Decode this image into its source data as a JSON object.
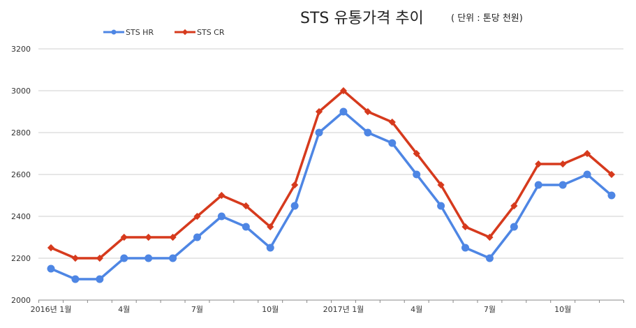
{
  "chart_data": {
    "type": "line",
    "title": "STS 유통가격 추이",
    "subtitle": "( 단위 : 톤당 천원)",
    "xlabel": "",
    "ylabel": "",
    "ylim": [
      2000,
      3200
    ],
    "y_ticks": [
      2000,
      2200,
      2400,
      2600,
      2800,
      3000,
      3200
    ],
    "x_tick_labels": [
      "2016년 1월",
      "4월",
      "7월",
      "10월",
      "2017년 1월",
      "4월",
      "7월",
      "10월"
    ],
    "x_tick_indices": [
      0,
      3,
      6,
      9,
      12,
      15,
      18,
      21
    ],
    "categories": [
      "2016-01",
      "2016-02",
      "2016-03",
      "2016-04",
      "2016-05",
      "2016-06",
      "2016-07",
      "2016-08",
      "2016-09",
      "2016-10",
      "2016-11",
      "2016-12",
      "2017-01",
      "2017-02",
      "2017-03",
      "2017-04",
      "2017-05",
      "2017-06",
      "2017-07",
      "2017-08",
      "2017-09",
      "2017-10",
      "2017-11",
      "2017-12"
    ],
    "grid": true,
    "legend_position": "top-left",
    "series": [
      {
        "name": "STS HR",
        "color": "#4e86e4",
        "marker": "circle",
        "values": [
          2150,
          2100,
          2100,
          2200,
          2200,
          2200,
          2300,
          2400,
          2350,
          2250,
          2450,
          2800,
          2900,
          2800,
          2750,
          2600,
          2450,
          2250,
          2200,
          2350,
          2550,
          2550,
          2600,
          2500
        ]
      },
      {
        "name": "STS CR",
        "color": "#d63a1d",
        "marker": "diamond",
        "values": [
          2250,
          2200,
          2200,
          2300,
          2300,
          2300,
          2400,
          2500,
          2450,
          2350,
          2550,
          2900,
          3000,
          2900,
          2850,
          2700,
          2550,
          2350,
          2300,
          2450,
          2650,
          2650,
          2700,
          2600
        ]
      }
    ]
  }
}
